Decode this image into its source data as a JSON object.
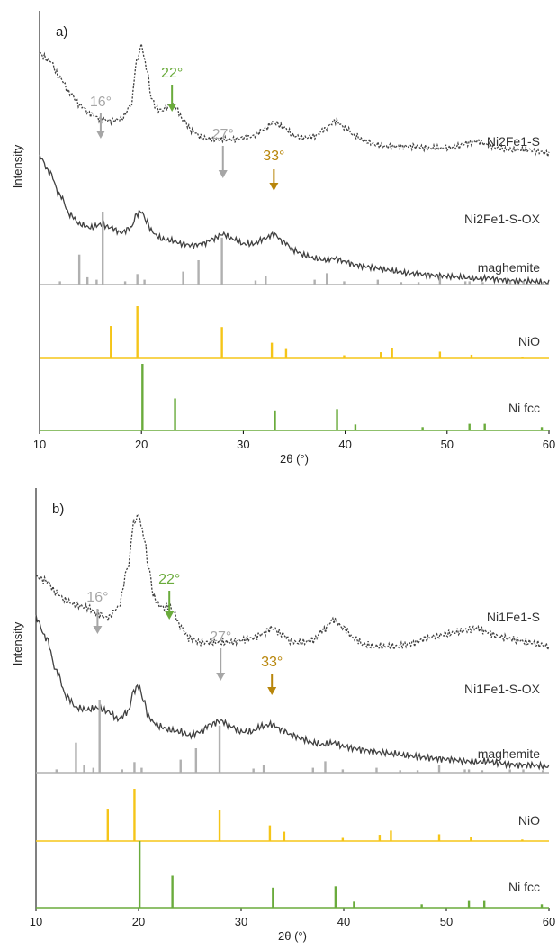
{
  "chart_data": [
    {
      "type": "line",
      "panel_label": "a)",
      "xlabel": "2θ (°)",
      "ylabel": "Intensity",
      "xlim": [
        10,
        60
      ],
      "xticks": [
        "10",
        "20",
        "30",
        "40",
        "50",
        "60"
      ],
      "colors": {
        "experimental": "#404040",
        "maghemite": "#b0b0b0",
        "NiO": "#f5c518",
        "Nifcc": "#6aab3c"
      },
      "series": [
        {
          "name": "Ni2Fe1-S",
          "style": "dotted",
          "x": [
            10,
            11,
            12,
            13,
            14,
            15,
            16,
            17,
            18,
            19,
            19.5,
            20,
            20.5,
            21,
            21.5,
            22,
            22.5,
            23,
            23.5,
            24,
            25,
            26,
            27,
            28,
            29,
            30,
            31,
            32,
            33,
            34,
            35,
            36,
            37,
            38,
            39,
            40,
            41,
            42,
            43,
            44,
            45,
            46,
            47,
            48,
            49,
            50,
            51,
            52,
            53,
            54,
            55,
            56,
            57,
            58,
            59,
            60
          ],
          "y": [
            1.0,
            0.96,
            0.86,
            0.77,
            0.7,
            0.65,
            0.62,
            0.61,
            0.62,
            0.7,
            0.95,
            1.05,
            0.92,
            0.74,
            0.68,
            0.67,
            0.69,
            0.71,
            0.68,
            0.62,
            0.55,
            0.51,
            0.5,
            0.5,
            0.5,
            0.51,
            0.52,
            0.56,
            0.6,
            0.57,
            0.52,
            0.51,
            0.52,
            0.56,
            0.61,
            0.57,
            0.52,
            0.49,
            0.47,
            0.46,
            0.46,
            0.46,
            0.46,
            0.45,
            0.45,
            0.45,
            0.46,
            0.48,
            0.49,
            0.47,
            0.45,
            0.44,
            0.44,
            0.44,
            0.43,
            0.42
          ]
        },
        {
          "name": "Ni2Fe1-S-OX",
          "style": "solid",
          "x": [
            10,
            11,
            12,
            13,
            14,
            15,
            16,
            17,
            18,
            19,
            19.5,
            20,
            20.5,
            21,
            21.5,
            22,
            23,
            24,
            25,
            26,
            27,
            28,
            29,
            30,
            31,
            32,
            33,
            34,
            35,
            36,
            37,
            38,
            39,
            40,
            41,
            42,
            43,
            44,
            45,
            46,
            47,
            48,
            49,
            50,
            51,
            52,
            53,
            54,
            55,
            56,
            57,
            58,
            59,
            60
          ],
          "y": [
            0.98,
            0.88,
            0.74,
            0.62,
            0.56,
            0.54,
            0.56,
            0.54,
            0.51,
            0.54,
            0.62,
            0.64,
            0.58,
            0.52,
            0.49,
            0.47,
            0.46,
            0.44,
            0.43,
            0.44,
            0.47,
            0.5,
            0.47,
            0.44,
            0.44,
            0.47,
            0.5,
            0.45,
            0.4,
            0.37,
            0.35,
            0.34,
            0.35,
            0.33,
            0.31,
            0.3,
            0.29,
            0.28,
            0.27,
            0.26,
            0.255,
            0.25,
            0.245,
            0.24,
            0.235,
            0.23,
            0.225,
            0.23,
            0.22,
            0.215,
            0.21,
            0.21,
            0.205,
            0.2
          ]
        },
        {
          "name": "maghemite",
          "style": "reference",
          "x": [
            12.0,
            13.9,
            14.7,
            15.6,
            16.2,
            18.4,
            19.6,
            20.3,
            24.1,
            25.6,
            27.9,
            31.2,
            32.2,
            37.0,
            38.2,
            39.9,
            43.2,
            45.5,
            47.2,
            49.3,
            51.8,
            52.2,
            53.5,
            56.2,
            57.5,
            59.4
          ],
          "y": [
            0.04,
            0.37,
            0.09,
            0.06,
            0.9,
            0.04,
            0.13,
            0.06,
            0.16,
            0.3,
            0.58,
            0.05,
            0.1,
            0.06,
            0.14,
            0.04,
            0.06,
            0.03,
            0.03,
            0.1,
            0.04,
            0.04,
            0.03,
            0.04,
            0.04,
            0.03
          ]
        },
        {
          "name": "NiO",
          "style": "reference",
          "x": [
            17.0,
            19.6,
            27.9,
            32.8,
            34.2,
            39.9,
            43.5,
            44.6,
            49.3,
            52.4,
            57.4
          ],
          "y": [
            0.62,
            1.0,
            0.6,
            0.3,
            0.18,
            0.06,
            0.12,
            0.2,
            0.13,
            0.07,
            0.03
          ]
        },
        {
          "name": "Ni fcc",
          "style": "reference",
          "x": [
            20.1,
            23.3,
            33.1,
            39.2,
            41.0,
            47.6,
            52.2,
            53.7,
            59.3
          ],
          "y": [
            1.0,
            0.48,
            0.3,
            0.32,
            0.09,
            0.05,
            0.1,
            0.1,
            0.05
          ]
        }
      ],
      "annotations": [
        {
          "text": "16°",
          "x": 16,
          "color": "#a6a6a6"
        },
        {
          "text": "22°",
          "x": 23,
          "color": "#6aab3c"
        },
        {
          "text": "27°",
          "x": 28,
          "color": "#a6a6a6"
        },
        {
          "text": "33°",
          "x": 33,
          "color": "#b8860b"
        }
      ]
    },
    {
      "type": "line",
      "panel_label": "b)",
      "xlabel": "2θ (°)",
      "ylabel": "Intensity",
      "xlim": [
        10,
        60
      ],
      "xticks": [
        "10",
        "20",
        "30",
        "40",
        "50",
        "60"
      ],
      "colors": {
        "experimental": "#404040",
        "maghemite": "#b0b0b0",
        "NiO": "#f5c518",
        "Nifcc": "#6aab3c"
      },
      "series": [
        {
          "name": "Ni1Fe1-S",
          "style": "dotted",
          "x": [
            10,
            11,
            12,
            13,
            14,
            15,
            16,
            17,
            18,
            19,
            19.5,
            20,
            20.5,
            21,
            21.5,
            22,
            22.5,
            23,
            23.5,
            24,
            25,
            26,
            27,
            28,
            29,
            30,
            31,
            32,
            33,
            34,
            35,
            36,
            37,
            38,
            39,
            40,
            41,
            42,
            43,
            44,
            45,
            46,
            47,
            48,
            49,
            50,
            51,
            52,
            53,
            54,
            55,
            56,
            57,
            58,
            59,
            60
          ],
          "y": [
            0.7,
            0.68,
            0.62,
            0.58,
            0.56,
            0.55,
            0.52,
            0.5,
            0.55,
            0.75,
            0.96,
            1.0,
            0.9,
            0.74,
            0.6,
            0.56,
            0.55,
            0.56,
            0.52,
            0.46,
            0.4,
            0.38,
            0.38,
            0.38,
            0.38,
            0.39,
            0.4,
            0.42,
            0.45,
            0.42,
            0.38,
            0.38,
            0.39,
            0.44,
            0.49,
            0.45,
            0.4,
            0.37,
            0.36,
            0.36,
            0.36,
            0.37,
            0.38,
            0.4,
            0.41,
            0.42,
            0.43,
            0.44,
            0.45,
            0.43,
            0.41,
            0.4,
            0.39,
            0.38,
            0.37,
            0.36
          ]
        },
        {
          "name": "Ni1Fe1-S-OX",
          "style": "solid",
          "x": [
            10,
            11,
            12,
            13,
            14,
            15,
            16,
            17,
            18,
            19,
            19.5,
            20,
            20.5,
            21,
            21.5,
            22,
            23,
            24,
            25,
            26,
            27,
            28,
            29,
            30,
            31,
            32,
            33,
            34,
            35,
            36,
            37,
            38,
            39,
            40,
            41,
            42,
            43,
            44,
            45,
            46,
            47,
            48,
            49,
            50,
            51,
            52,
            53,
            54,
            55,
            56,
            57,
            58,
            59,
            60
          ],
          "y": [
            0.95,
            0.84,
            0.66,
            0.52,
            0.46,
            0.45,
            0.46,
            0.44,
            0.4,
            0.44,
            0.55,
            0.58,
            0.5,
            0.41,
            0.38,
            0.36,
            0.34,
            0.33,
            0.31,
            0.33,
            0.37,
            0.39,
            0.36,
            0.33,
            0.33,
            0.36,
            0.37,
            0.34,
            0.31,
            0.29,
            0.27,
            0.26,
            0.27,
            0.25,
            0.24,
            0.23,
            0.22,
            0.215,
            0.21,
            0.2,
            0.195,
            0.19,
            0.185,
            0.18,
            0.175,
            0.17,
            0.165,
            0.17,
            0.16,
            0.155,
            0.15,
            0.15,
            0.145,
            0.14
          ]
        },
        {
          "name": "maghemite",
          "style": "reference",
          "x": [
            12.0,
            13.9,
            14.7,
            15.6,
            16.2,
            18.4,
            19.6,
            20.3,
            24.1,
            25.6,
            27.9,
            31.2,
            32.2,
            37.0,
            38.2,
            39.9,
            43.2,
            45.5,
            47.2,
            49.3,
            51.8,
            52.2,
            53.5,
            56.2,
            57.5,
            59.4
          ],
          "y": [
            0.04,
            0.37,
            0.09,
            0.06,
            0.9,
            0.04,
            0.13,
            0.06,
            0.16,
            0.3,
            0.58,
            0.05,
            0.1,
            0.06,
            0.14,
            0.04,
            0.06,
            0.03,
            0.03,
            0.1,
            0.04,
            0.04,
            0.03,
            0.04,
            0.04,
            0.03
          ]
        },
        {
          "name": "NiO",
          "style": "reference",
          "x": [
            17.0,
            19.6,
            27.9,
            32.8,
            34.2,
            39.9,
            43.5,
            44.6,
            49.3,
            52.4,
            57.4
          ],
          "y": [
            0.62,
            1.0,
            0.6,
            0.3,
            0.18,
            0.06,
            0.12,
            0.2,
            0.13,
            0.07,
            0.03
          ]
        },
        {
          "name": "Ni fcc",
          "style": "reference",
          "x": [
            20.1,
            23.3,
            33.1,
            39.2,
            41.0,
            47.6,
            52.2,
            53.7,
            59.3
          ],
          "y": [
            1.0,
            0.48,
            0.3,
            0.32,
            0.09,
            0.05,
            0.1,
            0.1,
            0.05
          ]
        }
      ],
      "annotations": [
        {
          "text": "16°",
          "x": 16,
          "color": "#a6a6a6"
        },
        {
          "text": "22°",
          "x": 23,
          "color": "#6aab3c"
        },
        {
          "text": "27°",
          "x": 28,
          "color": "#a6a6a6"
        },
        {
          "text": "33°",
          "x": 33,
          "color": "#b8860b"
        }
      ]
    }
  ]
}
